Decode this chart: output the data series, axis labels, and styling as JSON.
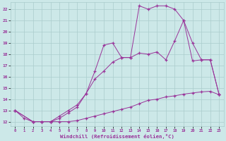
{
  "xlabel": "Windchill (Refroidissement éolien,°C)",
  "bg_color": "#cce8e8",
  "grid_color": "#aacccc",
  "line_color": "#993399",
  "xlim_min": -0.5,
  "xlim_max": 23.5,
  "ylim_min": 11.6,
  "ylim_max": 22.6,
  "xticks": [
    0,
    1,
    2,
    3,
    4,
    5,
    6,
    7,
    8,
    9,
    10,
    11,
    12,
    13,
    14,
    15,
    16,
    17,
    18,
    19,
    20,
    21,
    22,
    23
  ],
  "yticks": [
    12,
    13,
    14,
    15,
    16,
    17,
    18,
    19,
    20,
    21,
    22
  ],
  "line1_x": [
    0,
    1,
    2,
    3,
    4,
    5,
    6,
    7,
    8,
    9,
    10,
    11,
    12,
    13,
    14,
    15,
    16,
    17,
    18,
    19,
    20,
    21,
    22,
    23
  ],
  "line1_y": [
    13.0,
    12.3,
    12.0,
    12.0,
    12.0,
    12.0,
    12.0,
    12.1,
    12.3,
    12.5,
    12.7,
    12.9,
    13.1,
    13.3,
    13.6,
    13.9,
    14.0,
    14.2,
    14.3,
    14.45,
    14.55,
    14.65,
    14.7,
    14.4
  ],
  "line2_x": [
    0,
    2,
    3,
    4,
    5,
    6,
    7,
    8,
    9,
    10,
    11,
    12,
    13,
    14,
    15,
    16,
    17,
    18,
    19,
    20,
    21,
    22,
    23
  ],
  "line2_y": [
    13.0,
    12.0,
    12.0,
    12.0,
    12.3,
    12.8,
    13.3,
    14.5,
    15.8,
    16.5,
    17.3,
    17.7,
    17.7,
    18.1,
    18.0,
    18.2,
    17.5,
    19.2,
    21.0,
    17.4,
    17.5,
    17.5,
    14.4
  ],
  "line3_x": [
    0,
    2,
    3,
    4,
    5,
    6,
    7,
    8,
    9,
    10,
    11,
    12,
    13,
    14,
    15,
    16,
    17,
    18,
    19,
    20,
    21,
    22,
    23
  ],
  "line3_y": [
    13.0,
    12.0,
    12.0,
    12.0,
    12.5,
    13.0,
    13.5,
    14.5,
    16.5,
    18.8,
    19.0,
    17.7,
    17.7,
    22.3,
    22.0,
    22.3,
    22.3,
    22.0,
    21.0,
    19.0,
    17.5,
    17.5,
    14.4
  ]
}
